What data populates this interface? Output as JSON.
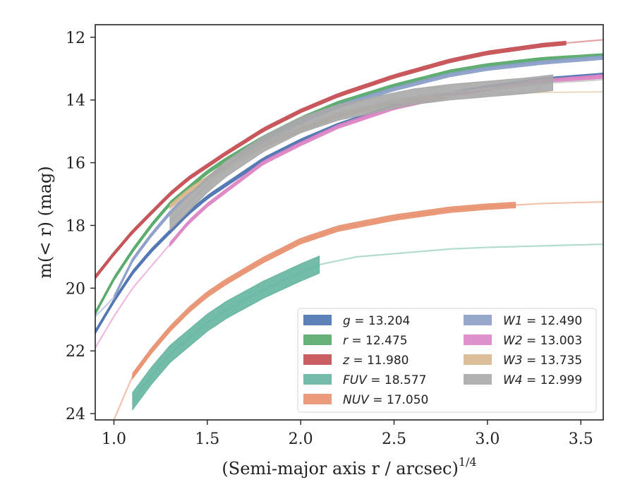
{
  "chart_data": {
    "type": "line",
    "title": "",
    "xlabel": "(Semi-major axis r / arcsec)",
    "xlabel_power": "1/4",
    "ylabel": "m(< r) (mag)",
    "xlim": [
      0.9,
      3.62
    ],
    "ylim": [
      24.2,
      11.6
    ],
    "y_inverted": true,
    "grid": false,
    "legend_position": "lower-right",
    "xticks": [
      "1.0",
      "1.5",
      "2.0",
      "2.5",
      "3.0",
      "3.5"
    ],
    "yticks": [
      "12",
      "14",
      "16",
      "18",
      "20",
      "22",
      "24"
    ],
    "series": [
      {
        "name": "g",
        "total": "13.204",
        "color": "#4c72b0",
        "fit_color": "#8fa9d3",
        "band_width": 0.12,
        "measured_range": [
          0.9,
          3.62
        ],
        "x": [
          0.9,
          1.0,
          1.1,
          1.2,
          1.3,
          1.4,
          1.5,
          1.6,
          1.8,
          2.0,
          2.2,
          2.5,
          2.8,
          3.0,
          3.3,
          3.62
        ],
        "y": [
          21.4,
          20.4,
          19.5,
          18.8,
          18.2,
          17.6,
          17.1,
          16.7,
          15.9,
          15.3,
          14.8,
          14.2,
          13.8,
          13.6,
          13.35,
          13.2
        ]
      },
      {
        "name": "r",
        "total": "12.475",
        "color": "#55a868",
        "fit_color": "#a3d1ad",
        "band_width": 0.12,
        "measured_range": [
          0.9,
          3.62
        ],
        "x": [
          0.9,
          1.0,
          1.1,
          1.2,
          1.3,
          1.4,
          1.5,
          1.6,
          1.8,
          2.0,
          2.2,
          2.5,
          2.8,
          3.0,
          3.3,
          3.62
        ],
        "y": [
          20.8,
          19.7,
          18.8,
          18.0,
          17.3,
          16.8,
          16.3,
          15.9,
          15.2,
          14.6,
          14.1,
          13.55,
          13.1,
          12.9,
          12.7,
          12.58
        ]
      },
      {
        "name": "z",
        "total": "11.980",
        "color": "#c44e52",
        "fit_color": "#e6a3a5",
        "band_width": 0.12,
        "measured_range": [
          0.9,
          3.42
        ],
        "x": [
          0.9,
          1.0,
          1.1,
          1.2,
          1.3,
          1.4,
          1.5,
          1.6,
          1.8,
          2.0,
          2.2,
          2.5,
          2.8,
          3.0,
          3.3,
          3.62
        ],
        "y": [
          19.65,
          18.9,
          18.2,
          17.6,
          17.0,
          16.5,
          16.1,
          15.7,
          14.95,
          14.35,
          13.85,
          13.25,
          12.75,
          12.5,
          12.25,
          12.08
        ]
      },
      {
        "name": "FUV",
        "total": "18.577",
        "color": "#64b5a0",
        "fit_color": "#b2dccf",
        "band_width": 0.55,
        "measured_range": [
          1.1,
          2.1
        ],
        "x": [
          1.1,
          1.2,
          1.3,
          1.4,
          1.5,
          1.6,
          1.8,
          2.0,
          2.1,
          2.3,
          2.5,
          2.8,
          3.0,
          3.3,
          3.62
        ],
        "y": [
          23.6,
          22.8,
          22.1,
          21.6,
          21.1,
          20.7,
          20.05,
          19.5,
          19.25,
          19.0,
          18.9,
          18.75,
          18.7,
          18.65,
          18.6
        ]
      },
      {
        "name": "NUV",
        "total": "17.050",
        "color": "#e8906e",
        "fit_color": "#f2c2ad",
        "band_width": 0.18,
        "measured_range": [
          1.1,
          3.15
        ],
        "x": [
          1.0,
          1.1,
          1.2,
          1.3,
          1.4,
          1.5,
          1.6,
          1.8,
          2.0,
          2.2,
          2.5,
          2.8,
          3.0,
          3.15,
          3.3,
          3.62
        ],
        "y": [
          24.2,
          22.8,
          22.0,
          21.3,
          20.7,
          20.2,
          19.8,
          19.1,
          18.5,
          18.1,
          17.75,
          17.5,
          17.4,
          17.35,
          17.3,
          17.25
        ]
      },
      {
        "name": "W1",
        "total": "12.490",
        "color": "#8c9fc8",
        "fit_color": "#c2cce3",
        "band_width": 0.12,
        "measured_range": [
          1.0,
          3.62
        ],
        "x": [
          0.9,
          1.0,
          1.1,
          1.2,
          1.3,
          1.4,
          1.5,
          1.6,
          1.8,
          2.0,
          2.2,
          2.5,
          2.8,
          3.0,
          3.3,
          3.62
        ],
        "y": [
          20.9,
          20.3,
          19.1,
          18.3,
          17.6,
          17.0,
          16.5,
          16.1,
          15.3,
          14.7,
          14.2,
          13.65,
          13.2,
          13.0,
          12.8,
          12.65
        ]
      },
      {
        "name": "W2",
        "total": "13.003",
        "color": "#dd84c4",
        "fit_color": "#eeb9df",
        "band_width": 0.12,
        "measured_range": [
          1.3,
          3.62
        ],
        "x": [
          0.9,
          1.0,
          1.1,
          1.2,
          1.3,
          1.4,
          1.5,
          1.6,
          1.8,
          2.0,
          2.2,
          2.5,
          2.8,
          3.0,
          3.3,
          3.62
        ],
        "y": [
          21.9,
          20.9,
          20.0,
          19.3,
          18.6,
          17.9,
          17.35,
          16.9,
          16.0,
          15.4,
          14.85,
          14.25,
          13.85,
          13.65,
          13.4,
          13.25
        ]
      },
      {
        "name": "W3",
        "total": "13.735",
        "color": "#d8b78e",
        "fit_color": "#ecdcc6",
        "band_width": 0.14,
        "measured_range": [
          1.3,
          2.75
        ],
        "x": [
          1.3,
          1.4,
          1.5,
          1.6,
          1.8,
          2.0,
          2.2,
          2.5,
          2.75,
          3.0,
          3.3,
          3.62
        ],
        "y": [
          17.4,
          16.9,
          16.5,
          16.1,
          15.45,
          14.95,
          14.5,
          14.05,
          13.9,
          13.8,
          13.76,
          13.74
        ]
      },
      {
        "name": "W4",
        "total": "12.999",
        "color": "#a8a8a8",
        "fit_color": "#cfcfcf",
        "band_width": 0.5,
        "measured_range": [
          1.3,
          3.35
        ],
        "x": [
          1.3,
          1.4,
          1.5,
          1.6,
          1.8,
          2.0,
          2.2,
          2.4,
          2.6,
          2.8,
          3.0,
          3.2,
          3.35,
          3.5,
          3.62
        ],
        "y": [
          17.9,
          17.3,
          16.7,
          16.2,
          15.4,
          14.8,
          14.4,
          14.15,
          13.9,
          13.75,
          13.65,
          13.55,
          13.45,
          13.4,
          13.35
        ]
      }
    ]
  }
}
